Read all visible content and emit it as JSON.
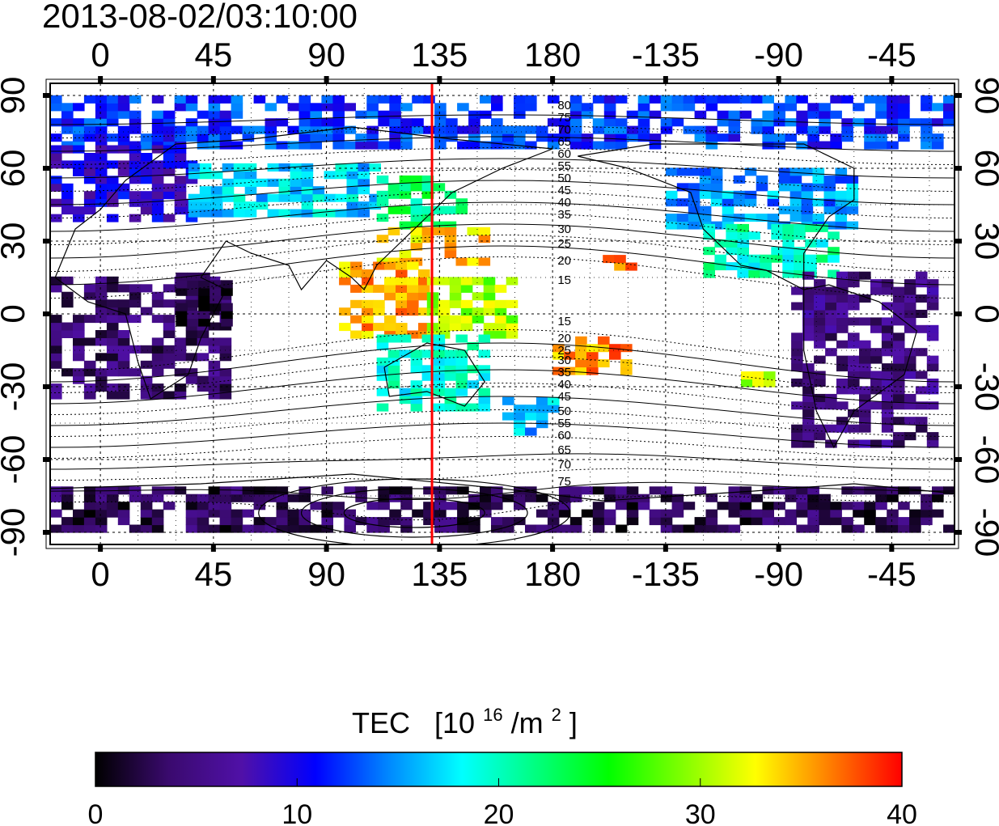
{
  "timestamp": "2013-08-02/03:10:00",
  "x_axis": {
    "ticks": [
      {
        "lon": 0,
        "label": "0"
      },
      {
        "lon": 45,
        "label": "45"
      },
      {
        "lon": 90,
        "label": "90"
      },
      {
        "lon": 135,
        "label": "135"
      },
      {
        "lon": 180,
        "label": "180"
      },
      {
        "lon": 225,
        "label": "-135"
      },
      {
        "lon": 270,
        "label": "-90"
      },
      {
        "lon": 315,
        "label": "-45"
      }
    ],
    "range": [
      -20,
      340
    ]
  },
  "y_axis": {
    "ticks": [
      {
        "lat": 90,
        "label": "90"
      },
      {
        "lat": 60,
        "label": "60"
      },
      {
        "lat": 30,
        "label": "30"
      },
      {
        "lat": 0,
        "label": "0"
      },
      {
        "lat": -30,
        "label": "-30"
      },
      {
        "lat": -60,
        "label": "-60"
      },
      {
        "lat": -90,
        "label": "-90"
      }
    ],
    "range": [
      -95,
      95
    ]
  },
  "meridian_marker": {
    "lon": 132,
    "color": "#ff0000"
  },
  "contour_labels": [
    {
      "text": "80",
      "lon": 182,
      "lat": 86
    },
    {
      "text": "75",
      "lon": 182,
      "lat": 81
    },
    {
      "text": "70",
      "lon": 182,
      "lat": 76
    },
    {
      "text": "65",
      "lon": 182,
      "lat": 71
    },
    {
      "text": "60",
      "lon": 182,
      "lat": 66
    },
    {
      "text": "55",
      "lon": 182,
      "lat": 61
    },
    {
      "text": "50",
      "lon": 182,
      "lat": 56
    },
    {
      "text": "45",
      "lon": 182,
      "lat": 51
    },
    {
      "text": "40",
      "lon": 182,
      "lat": 46
    },
    {
      "text": "35",
      "lon": 182,
      "lat": 41
    },
    {
      "text": "30",
      "lon": 182,
      "lat": 35
    },
    {
      "text": "25",
      "lon": 182,
      "lat": 29
    },
    {
      "text": "20",
      "lon": 182,
      "lat": 22
    },
    {
      "text": "15",
      "lon": 182,
      "lat": 14
    },
    {
      "text": "15",
      "lon": 182,
      "lat": -3
    },
    {
      "text": "20",
      "lon": 182,
      "lat": -10
    },
    {
      "text": "25",
      "lon": 182,
      "lat": -15
    },
    {
      "text": "30",
      "lon": 182,
      "lat": -19
    },
    {
      "text": "35",
      "lon": 182,
      "lat": -24
    },
    {
      "text": "40",
      "lon": 182,
      "lat": -29
    },
    {
      "text": "45",
      "lon": 182,
      "lat": -34
    },
    {
      "text": "50",
      "lon": 182,
      "lat": -40
    },
    {
      "text": "55",
      "lon": 182,
      "lat": -45
    },
    {
      "text": "60",
      "lon": 182,
      "lat": -50
    },
    {
      "text": "65",
      "lon": 182,
      "lat": -56
    },
    {
      "text": "70",
      "lon": 182,
      "lat": -62
    },
    {
      "text": "75",
      "lon": 182,
      "lat": -69
    }
  ],
  "colorbar": {
    "title": "TEC",
    "unit_main": "[10",
    "unit_sup1": "16",
    "unit_mid": "/m",
    "unit_sup2": "2",
    "unit_end": "]",
    "min": 0,
    "max": 40,
    "tick_labels": [
      "0",
      "10",
      "20",
      "30",
      "40"
    ],
    "colors": [
      "#000000",
      "#3a0a6e",
      "#5010a8",
      "#0000ff",
      "#0088ff",
      "#00ffff",
      "#00ff80",
      "#00ff00",
      "#80ff00",
      "#ffff00",
      "#ff8000",
      "#ff0000"
    ]
  },
  "tec_regions": [
    {
      "lon0": -20,
      "lon1": 340,
      "lat0": 68,
      "lat1": 90,
      "tec": 12
    },
    {
      "lon0": -20,
      "lon1": 35,
      "lat0": 38,
      "lat1": 68,
      "tec": 9
    },
    {
      "lon0": 35,
      "lon1": 110,
      "lat0": 40,
      "lat1": 62,
      "tec": 17
    },
    {
      "lon0": 110,
      "lon1": 145,
      "lat0": 35,
      "lat1": 55,
      "tec": 22
    },
    {
      "lon0": 110,
      "lon1": 155,
      "lat0": 20,
      "lat1": 35,
      "tec": 34
    },
    {
      "lon0": 95,
      "lon1": 130,
      "lat0": -10,
      "lat1": 20,
      "tec": 35
    },
    {
      "lon0": 130,
      "lon1": 165,
      "lat0": -10,
      "lat1": 15,
      "tec": 30
    },
    {
      "lon0": 110,
      "lon1": 155,
      "lat0": -40,
      "lat1": -10,
      "tec": 19
    },
    {
      "lon0": 160,
      "lon1": 180,
      "lat0": -50,
      "lat1": -35,
      "tec": 16
    },
    {
      "lon0": -20,
      "lon1": 50,
      "lat0": -35,
      "lat1": 15,
      "tec": 4
    },
    {
      "lon0": 30,
      "lon1": 50,
      "lat0": -5,
      "lat1": 15,
      "tec": 1
    },
    {
      "lon0": 225,
      "lon1": 300,
      "lat0": 35,
      "lat1": 60,
      "tec": 15
    },
    {
      "lon0": 240,
      "lon1": 290,
      "lat0": 15,
      "lat1": 35,
      "tec": 20
    },
    {
      "lon0": 275,
      "lon1": 330,
      "lat0": -55,
      "lat1": 15,
      "tec": 5
    },
    {
      "lon0": -20,
      "lon1": 340,
      "lat0": -90,
      "lat1": -72,
      "tec": 3
    },
    {
      "lon0": 200,
      "lon1": 215,
      "lat0": 18,
      "lat1": 24,
      "tec": 38
    },
    {
      "lon0": 180,
      "lon1": 210,
      "lat0": -25,
      "lat1": -10,
      "tec": 36
    },
    {
      "lon0": 255,
      "lon1": 265,
      "lat0": -30,
      "lat1": -24,
      "tec": 31
    }
  ]
}
